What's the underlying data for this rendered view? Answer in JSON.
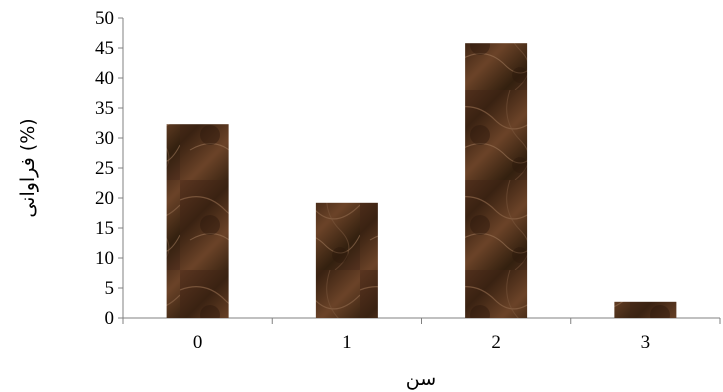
{
  "chart_data": {
    "type": "bar",
    "categories": [
      "0",
      "1",
      "2",
      "3"
    ],
    "values": [
      32.3,
      19.2,
      45.8,
      2.7
    ],
    "xlabel": "سن",
    "ylabel": "فراوانی (%)",
    "ylim": [
      0,
      50
    ],
    "yticks": [
      "0",
      "5",
      "10",
      "15",
      "20",
      "25",
      "30",
      "35",
      "40",
      "45",
      "50"
    ],
    "grid": false,
    "legend": "none",
    "bar_color": "#4a2a18",
    "bar_texture": "brown-marble"
  }
}
